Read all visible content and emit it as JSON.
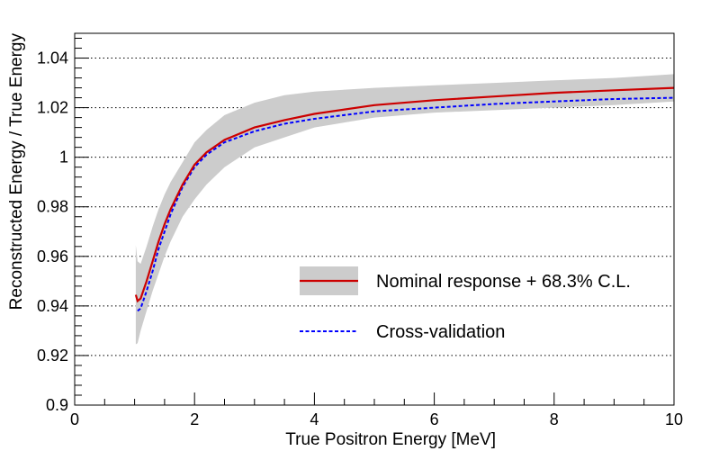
{
  "chart_data": {
    "type": "line",
    "title": "",
    "xlabel": "True Positron Energy [MeV]",
    "ylabel": "Reconstructed Energy / True Energy",
    "xlim": [
      0,
      10
    ],
    "ylim": [
      0.9,
      1.05
    ],
    "grid": "horizontal dotted at major y ticks",
    "legend_position": "lower-right",
    "x_ticks": [
      0,
      2,
      4,
      6,
      8,
      10
    ],
    "x_tick_labels": [
      "0",
      "2",
      "4",
      "6",
      "8",
      "10"
    ],
    "y_ticks": [
      0.9,
      0.92,
      0.94,
      0.96,
      0.98,
      1.0,
      1.02,
      1.04
    ],
    "y_tick_labels": [
      "0.9",
      "0.92",
      "0.94",
      "0.96",
      "0.98",
      "1",
      "1.02",
      "1.04"
    ],
    "series": [
      {
        "name": "Nominal response + 68.3% C.L.",
        "style": "solid",
        "color": "#cc0000",
        "band_color": "#cccccc",
        "x": [
          1.02,
          1.05,
          1.1,
          1.2,
          1.3,
          1.4,
          1.5,
          1.6,
          1.8,
          2.0,
          2.2,
          2.5,
          3.0,
          3.5,
          4.0,
          5.0,
          6.0,
          7.0,
          8.0,
          9.0,
          10.0
        ],
        "y": [
          0.9445,
          0.942,
          0.943,
          0.95,
          0.958,
          0.966,
          0.973,
          0.979,
          0.989,
          0.997,
          1.002,
          1.007,
          1.012,
          1.015,
          1.0175,
          1.021,
          1.023,
          1.0245,
          1.026,
          1.027,
          1.028
        ],
        "band_lower": [
          0.9245,
          0.925,
          0.93,
          0.938,
          0.946,
          0.953,
          0.96,
          0.966,
          0.976,
          0.983,
          0.989,
          0.996,
          1.004,
          1.008,
          1.012,
          1.016,
          1.018,
          1.019,
          1.02,
          1.021,
          1.0225
        ],
        "band_upper": [
          0.9645,
          0.958,
          0.957,
          0.964,
          0.972,
          0.979,
          0.985,
          0.99,
          0.998,
          1.006,
          1.011,
          1.017,
          1.022,
          1.025,
          1.0265,
          1.028,
          1.029,
          1.03,
          1.031,
          1.032,
          1.0335
        ]
      },
      {
        "name": "Cross-validation",
        "style": "dashed",
        "color": "#0000ff",
        "x": [
          1.05,
          1.1,
          1.2,
          1.3,
          1.4,
          1.5,
          1.6,
          1.8,
          2.0,
          2.2,
          2.5,
          3.0,
          3.5,
          4.0,
          5.0,
          6.0,
          7.0,
          8.0,
          9.0,
          10.0
        ],
        "y": [
          0.938,
          0.939,
          0.946,
          0.954,
          0.963,
          0.97,
          0.977,
          0.988,
          0.996,
          1.001,
          1.006,
          1.0105,
          1.0135,
          1.0155,
          1.0185,
          1.02,
          1.0215,
          1.0225,
          1.0235,
          1.024
        ]
      }
    ]
  }
}
